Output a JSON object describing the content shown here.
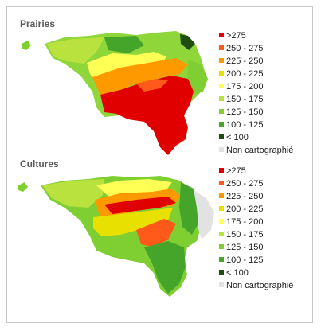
{
  "legend_colors": [
    "#e00000",
    "#ff5a1a",
    "#ff9900",
    "#e8e000",
    "#ffff55",
    "#b9e23f",
    "#7fcf32",
    "#45a52a",
    "#1f4d0f",
    "#e2e2e2"
  ],
  "panels": [
    {
      "title": "Prairies",
      "legend": [
        ">275",
        "250 - 275",
        "225 - 250",
        "200 - 225",
        "175 - 200",
        "150 - 175",
        "125 - 150",
        "100 - 125",
        "< 100",
        "Non cartographié"
      ]
    },
    {
      "title": "Cultures",
      "legend": [
        ">275",
        "250 - 275",
        "225 - 250",
        "200 - 225",
        "175 - 200",
        "150 - 175",
        "125 - 150",
        "100 - 125",
        "< 100",
        "Non cartographié"
      ]
    }
  ]
}
